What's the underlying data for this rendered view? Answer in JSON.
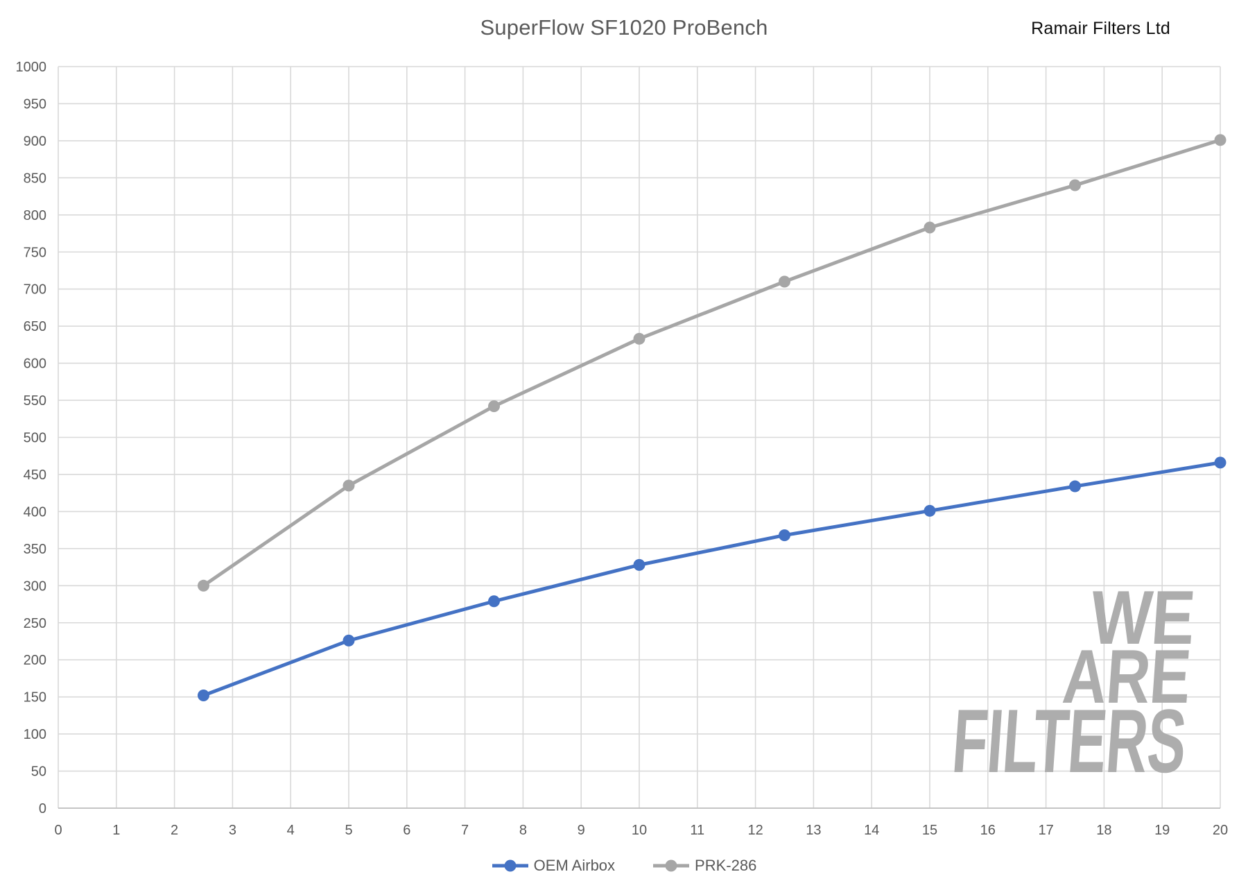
{
  "brand": "Ramair Filters Ltd",
  "watermark": {
    "lines": [
      "WE",
      "ARE",
      "FILTERS"
    ]
  },
  "chart_data": {
    "type": "line",
    "title": "SuperFlow SF1020 ProBench",
    "xlabel": "",
    "ylabel": "",
    "x": [
      2.5,
      5,
      7.5,
      10,
      12.5,
      15,
      17.5,
      20
    ],
    "series": [
      {
        "name": "OEM Airbox",
        "color": "#4472C4",
        "values": [
          152,
          226,
          279,
          328,
          368,
          401,
          434,
          466
        ]
      },
      {
        "name": "PRK-286",
        "color": "#A6A6A6",
        "values": [
          300,
          435,
          542,
          633,
          710,
          783,
          840,
          901
        ]
      }
    ],
    "xlim": [
      0,
      20
    ],
    "ylim": [
      0,
      1000
    ],
    "x_tick_step": 1,
    "y_tick_step": 50,
    "grid": true,
    "legend_position": "bottom",
    "gridline_color": "#D9D9D9",
    "axis_line_color": "#BFBFBF",
    "axis_label_color": "#595959"
  }
}
